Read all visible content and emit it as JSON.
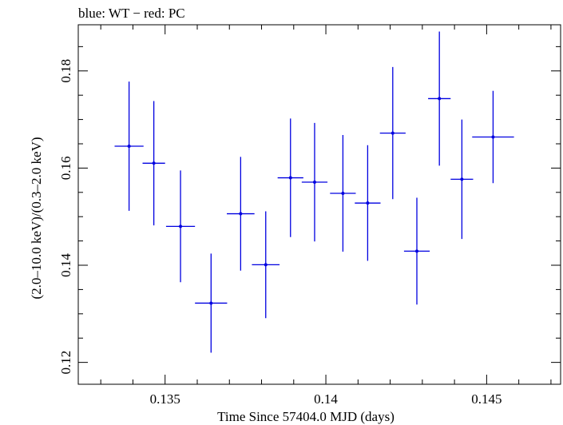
{
  "chart_data": {
    "type": "scatter",
    "title": "blue: WT − red: PC",
    "xlabel": "Time Since 57404.0 MJD (days)",
    "ylabel": "(2.0–10.0 keV)/(0.3–2.0 keV)",
    "xlim": [
      0.1323,
      0.1473
    ],
    "ylim": [
      0.1155,
      0.1895
    ],
    "x_ticks": [
      {
        "value": 0.135,
        "label": "0.135"
      },
      {
        "value": 0.14,
        "label": "0.14"
      },
      {
        "value": 0.145,
        "label": "0.145"
      }
    ],
    "y_ticks": [
      {
        "value": 0.12,
        "label": "0.12"
      },
      {
        "value": 0.14,
        "label": "0.14"
      },
      {
        "value": 0.16,
        "label": "0.16"
      },
      {
        "value": 0.18,
        "label": "0.18"
      }
    ],
    "series": [
      {
        "name": "WT",
        "color": "#0000e0",
        "points": [
          {
            "x": 0.13388,
            "xerr": 0.00045,
            "y": 0.1645,
            "yerr": 0.0133
          },
          {
            "x": 0.13465,
            "xerr": 0.00035,
            "y": 0.161,
            "yerr": 0.0128
          },
          {
            "x": 0.13548,
            "xerr": 0.00045,
            "y": 0.148,
            "yerr": 0.0115
          },
          {
            "x": 0.13643,
            "xerr": 0.0005,
            "y": 0.1322,
            "yerr": 0.0102
          },
          {
            "x": 0.13735,
            "xerr": 0.00043,
            "y": 0.1506,
            "yerr": 0.0117
          },
          {
            "x": 0.13813,
            "xerr": 0.00043,
            "y": 0.1401,
            "yerr": 0.011
          },
          {
            "x": 0.1389,
            "xerr": 0.0004,
            "y": 0.158,
            "yerr": 0.0122
          },
          {
            "x": 0.13965,
            "xerr": 0.0004,
            "y": 0.1571,
            "yerr": 0.0122
          },
          {
            "x": 0.14053,
            "xerr": 0.0004,
            "y": 0.1548,
            "yerr": 0.012
          },
          {
            "x": 0.1413,
            "xerr": 0.0004,
            "y": 0.1528,
            "yerr": 0.0119
          },
          {
            "x": 0.14208,
            "xerr": 0.0004,
            "y": 0.1672,
            "yerr": 0.0136
          },
          {
            "x": 0.14283,
            "xerr": 0.0004,
            "y": 0.1429,
            "yerr": 0.011
          },
          {
            "x": 0.14353,
            "xerr": 0.00035,
            "y": 0.1743,
            "yerr": 0.0138
          },
          {
            "x": 0.14423,
            "xerr": 0.00035,
            "y": 0.1577,
            "yerr": 0.0123
          },
          {
            "x": 0.1452,
            "xerr": 0.00065,
            "y": 0.1664,
            "yerr": 0.0095
          }
        ]
      }
    ]
  }
}
